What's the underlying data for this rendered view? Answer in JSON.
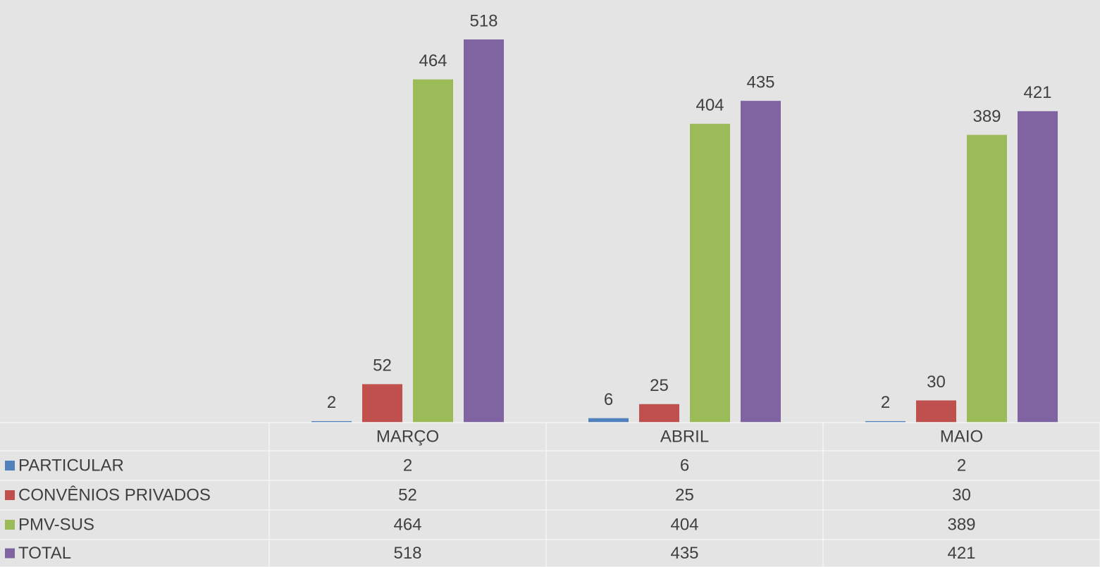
{
  "chart_data": {
    "type": "bar",
    "categories": [
      "MARÇO",
      "ABRIL",
      "MAIO"
    ],
    "series": [
      {
        "name": "PARTICULAR",
        "color": "#4f81bd",
        "values": [
          2,
          6,
          2
        ]
      },
      {
        "name": "CONVÊNIOS PRIVADOS",
        "color": "#c0504d",
        "values": [
          52,
          25,
          30
        ]
      },
      {
        "name": "PMV-SUS",
        "color": "#9bbb59",
        "values": [
          464,
          404,
          389
        ]
      },
      {
        "name": "TOTAL",
        "color": "#8064a2",
        "values": [
          518,
          435,
          421
        ]
      }
    ],
    "data_table": true
  }
}
